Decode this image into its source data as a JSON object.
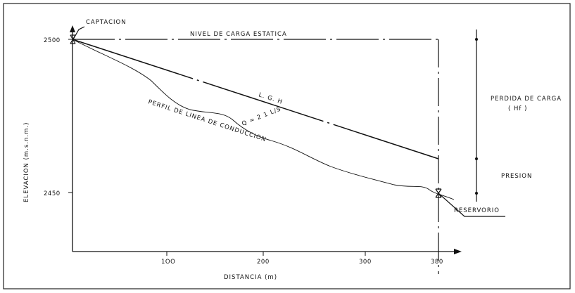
{
  "labels": {
    "captacion": "CAPTACION",
    "nivel": "NIVEL  DE  CARGA  ESTATICA",
    "lgh": "L. G. H",
    "perfil": "PERFIL  DE  LINEA  DE  CONDUCCION",
    "caudal": "Q = 2 1  L/S",
    "perdida_1": "PERDIDA DE CARGA",
    "perdida_2": "( Hf )",
    "presion": "PRESION",
    "reservorio": "RESERVORIO",
    "ylabel": "ELEVACION (m.s.n.m.)",
    "xlabel": "DISTANCIA  (m)"
  },
  "axes": {
    "y_ticks": [
      "2500",
      "2450"
    ],
    "x_ticks": [
      "1OO",
      "200",
      "300",
      "380"
    ]
  },
  "profile": {
    "static_level_m": 2500,
    "start": {
      "distance_m": 0,
      "elevation_m": 2500
    },
    "end": {
      "distance_m": 380,
      "elevation_m": 2451
    },
    "lgh_end_elevation_m": 2462,
    "ground_profile": [
      [
        0,
        2500
      ],
      [
        40,
        2494
      ],
      [
        70,
        2486
      ],
      [
        100,
        2478
      ],
      [
        130,
        2474
      ],
      [
        160,
        2472
      ],
      [
        190,
        2469
      ],
      [
        220,
        2466
      ],
      [
        260,
        2462
      ],
      [
        300,
        2458
      ],
      [
        340,
        2455
      ],
      [
        370,
        2452
      ],
      [
        380,
        2451
      ]
    ]
  }
}
